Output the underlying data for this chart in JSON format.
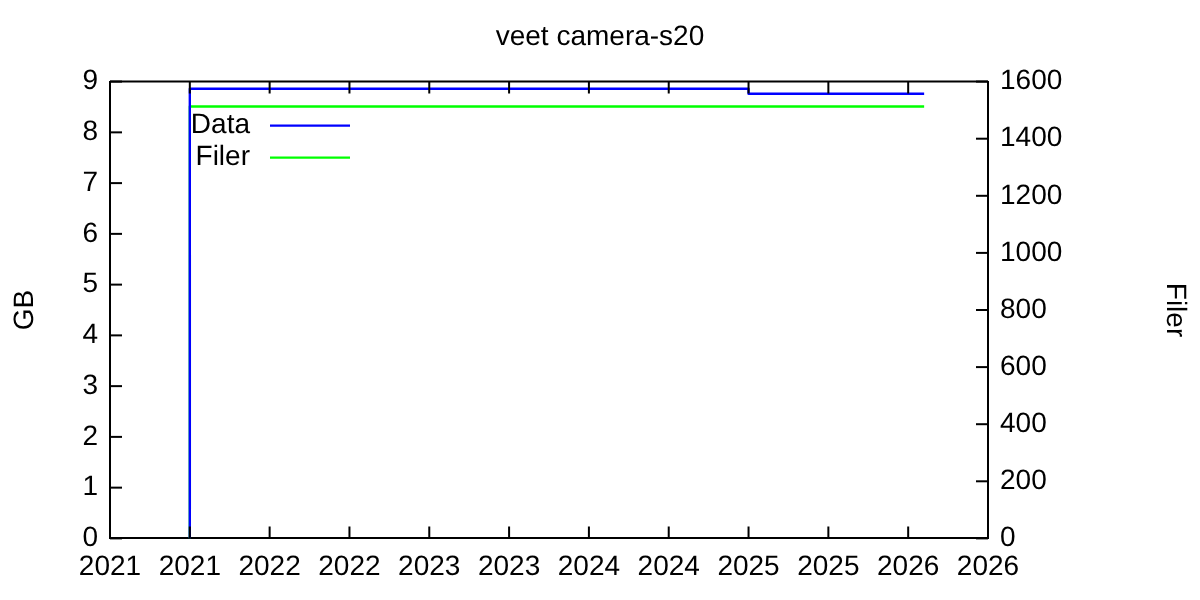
{
  "chart_data": {
    "type": "line",
    "title": "veet camera-s20",
    "ylabel": "GB",
    "y2label": "Filer",
    "xlim": [
      2021,
      2026.5
    ],
    "xticks": [
      2021,
      {
        "value": 2021.5,
        "label": "2021"
      },
      2022,
      {
        "value": 2022.5,
        "label": "2022"
      },
      2023,
      {
        "value": 2023.5,
        "label": "2023"
      },
      2024,
      {
        "value": 2024.5,
        "label": "2024"
      },
      2025,
      {
        "value": 2025.5,
        "label": "2025"
      },
      2026,
      {
        "value": 2026.5,
        "label": "2026"
      }
    ],
    "ylim": [
      0,
      9
    ],
    "yticks": [
      0,
      1,
      2,
      3,
      4,
      5,
      6,
      7,
      8,
      9
    ],
    "y2lim": [
      0,
      1600
    ],
    "y2ticks": [
      0,
      200,
      400,
      600,
      800,
      1000,
      1200,
      1400,
      1600
    ],
    "grid": false,
    "legend": "top left",
    "marker": "none",
    "line_style": "solid",
    "series": [
      {
        "name": "Data",
        "color": "#0000ff",
        "x": [
          2021.5,
          2021.5,
          2025.0,
          2025.0,
          2026.1
        ],
        "values": [
          0,
          8.86,
          8.86,
          8.76,
          8.76
        ]
      },
      {
        "name": "Filer",
        "color": "#00ff00",
        "axis": "y2",
        "x": [
          2021.5,
          2021.5,
          2026.1
        ],
        "values": [
          0,
          1513,
          1513
        ]
      }
    ]
  }
}
